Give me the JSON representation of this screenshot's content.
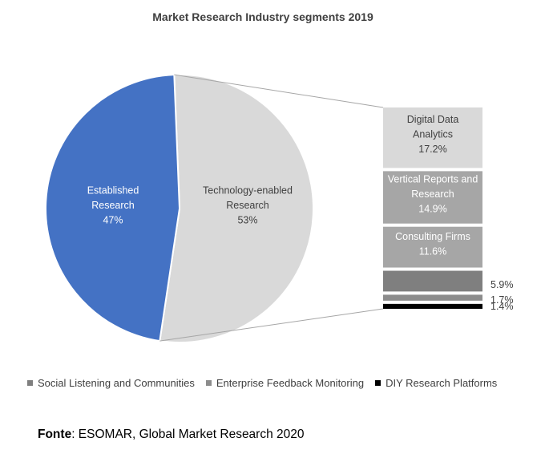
{
  "chart_data": {
    "type": "pie",
    "title": "Market Research Industry segments 2019",
    "pie": [
      {
        "label_lines": [
          "Established",
          "Research"
        ],
        "value": 47,
        "value_label": "47%",
        "color": "#4472C4",
        "text_color": "#FFFFFF"
      },
      {
        "label_lines": [
          "Technology-enabled",
          "Research"
        ],
        "value": 53,
        "value_label": "53%",
        "color": "#D9D9D9",
        "text_color": "#404040"
      }
    ],
    "breakdown_of": "Technology-enabled Research",
    "breakdown": [
      {
        "label_lines": [
          "Digital Data",
          "Analytics"
        ],
        "value": 17.2,
        "value_label": "17.2%",
        "color": "#D9D9D9",
        "text_color": "#404040"
      },
      {
        "label_lines": [
          "Vertical Reports and",
          "Research"
        ],
        "value": 14.9,
        "value_label": "14.9%",
        "color": "#A6A6A6",
        "text_color": "#FFFFFF"
      },
      {
        "label_lines": [
          "Consulting Firms"
        ],
        "value": 11.6,
        "value_label": "11.6%",
        "color": "#A6A6A6",
        "text_color": "#FFFFFF"
      },
      {
        "label_lines": [],
        "value": 5.9,
        "value_label": "5.9%",
        "color": "#7F7F7F",
        "text_color": "#404040"
      },
      {
        "label_lines": [],
        "value": 1.7,
        "value_label": "1.7%",
        "color": "#8C8C8C",
        "text_color": "#404040"
      },
      {
        "label_lines": [],
        "value": 1.4,
        "value_label": "1.4%",
        "color": "#000000",
        "text_color": "#404040"
      }
    ],
    "legend": [
      {
        "label": "Social Listening and Communities",
        "color": "#7F7F7F"
      },
      {
        "label": "Enterprise Feedback Monitoring",
        "color": "#8C8C8C"
      },
      {
        "label": "DIY Research Platforms",
        "color": "#000000"
      }
    ]
  },
  "source": {
    "label": "Fonte",
    "text": ": ESOMAR, Global Market Research 2020"
  }
}
